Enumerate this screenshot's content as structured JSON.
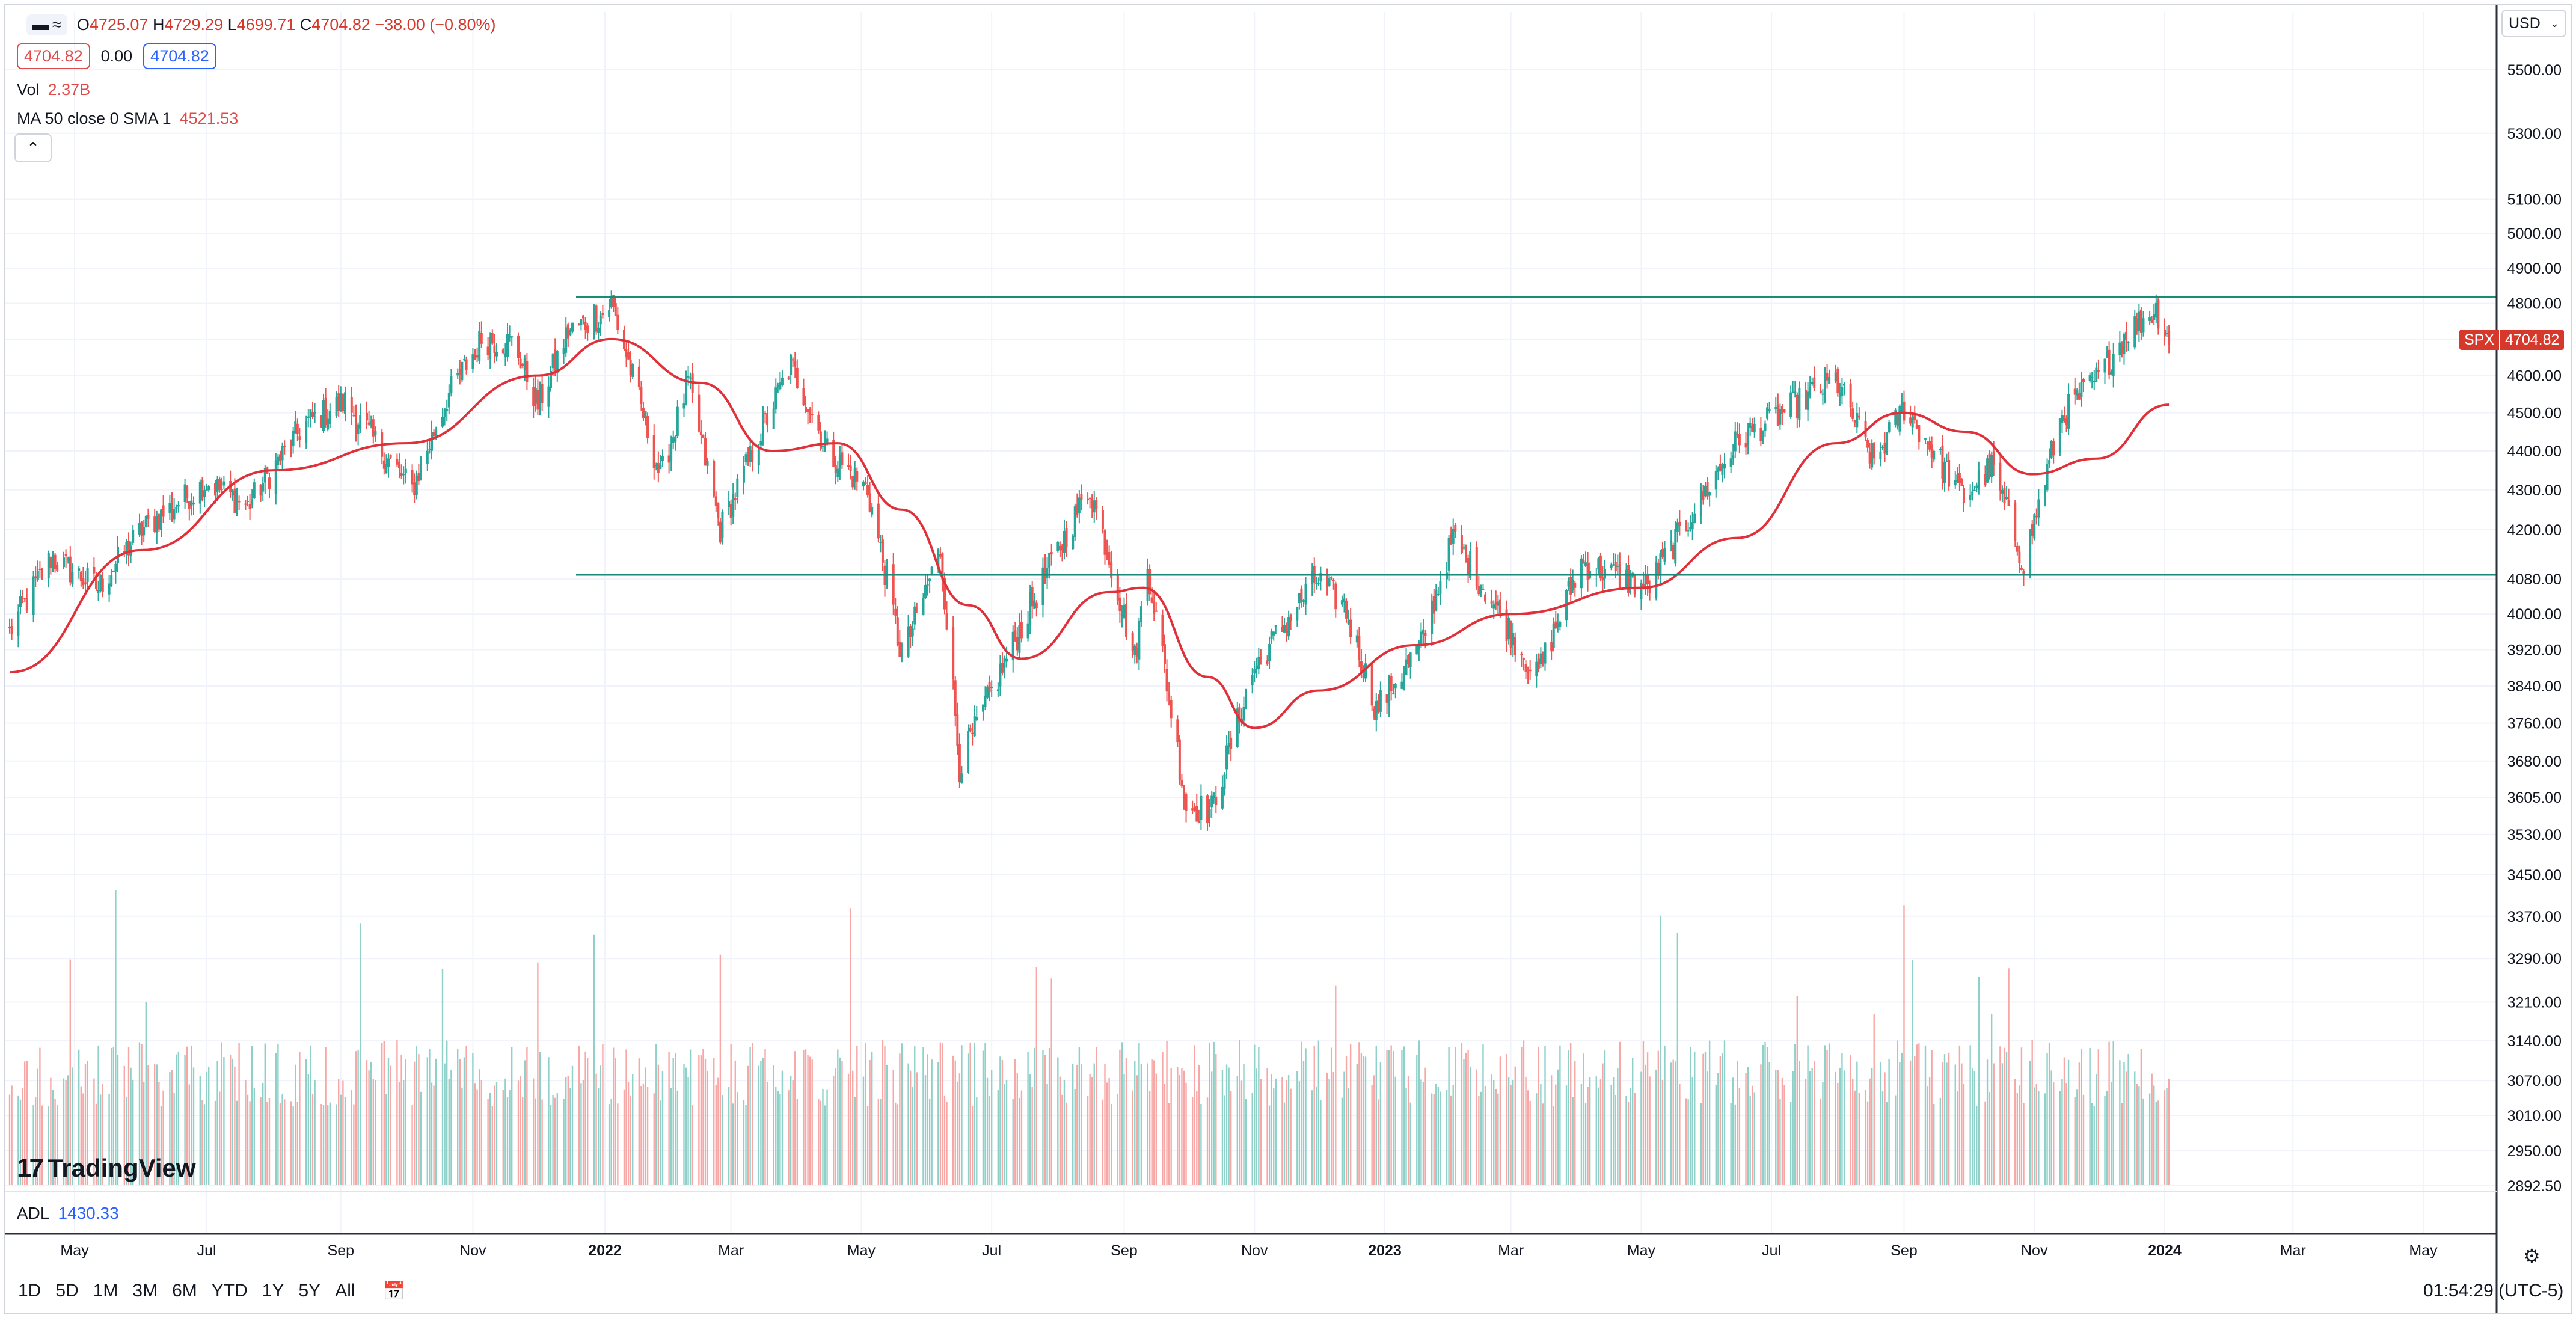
{
  "legend": {
    "ohlc": {
      "o_label": "O",
      "o": "4725.07",
      "h_label": "H",
      "h": "4729.29",
      "l_label": "L",
      "l": "4699.71",
      "c_label": "C",
      "c": "4704.82",
      "change": "−38.00 (−0.80%)"
    },
    "bid": "4704.82",
    "spread": "0.00",
    "ask": "4704.82",
    "vol_label": "Vol",
    "vol_value": "2.37B",
    "ma_label": "MA 50 close 0 SMA 1",
    "ma_value": "4521.53",
    "collapse_icon": "chevron-up-icon"
  },
  "currency": {
    "label": "USD",
    "icon": "chevron-down-icon"
  },
  "price_tag": {
    "symbol": "SPX",
    "price": "4704.82"
  },
  "logo": {
    "text": "TradingView"
  },
  "adl": {
    "label": "ADL",
    "value": "1430.33"
  },
  "toolbar": {
    "timeframes": [
      "1D",
      "5D",
      "1M",
      "3M",
      "6M",
      "YTD",
      "1Y",
      "5Y",
      "All"
    ],
    "goto_icon": "calendar-goto-icon"
  },
  "clock": "01:54:29 (UTC-5)",
  "colors": {
    "up": "#26a69a",
    "down": "#ef5350",
    "ma": "#e0303a",
    "hline": "#1a8a7a",
    "vol_up": "#8fd1c9",
    "vol_down": "#f7a8a6",
    "blue": "#2962ff"
  },
  "chart_data": {
    "type": "candlestick",
    "symbol": "SPX",
    "price_axis_ticks": [
      "5500.00",
      "5300.00",
      "5100.00",
      "5000.00",
      "4900.00",
      "4800.00",
      "4700.00",
      "4600.00",
      "4500.00",
      "4400.00",
      "4300.00",
      "4200.00",
      "4080.00",
      "4000.00",
      "3920.00",
      "3840.00",
      "3760.00",
      "3680.00",
      "3605.00",
      "3530.00",
      "3450.00",
      "3370.00",
      "3290.00",
      "3210.00",
      "3140.00",
      "3070.00",
      "3010.00",
      "2950.00",
      "2892.50"
    ],
    "price_scale": "log",
    "time_axis_labels": [
      "May",
      "Jul",
      "Sep",
      "Nov",
      "2022",
      "Mar",
      "May",
      "Jul",
      "Sep",
      "Nov",
      "2023",
      "Mar",
      "May",
      "Jul",
      "Sep",
      "Nov",
      "2024",
      "Mar",
      "May"
    ],
    "grid": true,
    "horizontal_lines": [
      4818,
      4090
    ],
    "price_keypoints": [
      [
        "2021-04-01",
        3960
      ],
      [
        "2021-04-20",
        4130
      ],
      [
        "2021-05-12",
        4060
      ],
      [
        "2021-06-01",
        4200
      ],
      [
        "2021-07-01",
        4320
      ],
      [
        "2021-07-20",
        4260
      ],
      [
        "2021-08-15",
        4470
      ],
      [
        "2021-09-03",
        4530
      ],
      [
        "2021-09-20",
        4400
      ],
      [
        "2021-10-04",
        4300
      ],
      [
        "2021-10-20",
        4540
      ],
      [
        "2021-11-05",
        4700
      ],
      [
        "2021-11-20",
        4690
      ],
      [
        "2021-12-01",
        4520
      ],
      [
        "2021-12-15",
        4720
      ],
      [
        "2021-12-31",
        4770
      ],
      [
        "2022-01-04",
        4800
      ],
      [
        "2022-01-27",
        4330
      ],
      [
        "2022-02-09",
        4580
      ],
      [
        "2022-02-24",
        4200
      ],
      [
        "2022-03-29",
        4630
      ],
      [
        "2022-04-15",
        4400
      ],
      [
        "2022-05-04",
        4300
      ],
      [
        "2022-05-20",
        3900
      ],
      [
        "2022-06-07",
        4150
      ],
      [
        "2022-06-16",
        3670
      ],
      [
        "2022-07-08",
        3900
      ],
      [
        "2022-08-16",
        4305
      ],
      [
        "2022-09-06",
        3900
      ],
      [
        "2022-09-12",
        4110
      ],
      [
        "2022-09-30",
        3585
      ],
      [
        "2022-10-12",
        3580
      ],
      [
        "2022-11-01",
        3880
      ],
      [
        "2022-11-30",
        4080
      ],
      [
        "2022-12-13",
        4020
      ],
      [
        "2022-12-28",
        3790
      ],
      [
        "2023-01-18",
        3930
      ],
      [
        "2023-02-02",
        4180
      ],
      [
        "2023-03-13",
        3860
      ],
      [
        "2023-04-03",
        4120
      ],
      [
        "2023-05-04",
        4060
      ],
      [
        "2023-06-15",
        4425
      ],
      [
        "2023-07-31",
        4590
      ],
      [
        "2023-08-18",
        4370
      ],
      [
        "2023-09-01",
        4515
      ],
      [
        "2023-09-29",
        4280
      ],
      [
        "2023-10-12",
        4360
      ],
      [
        "2023-10-27",
        4117
      ],
      [
        "2023-11-14",
        4495
      ],
      [
        "2023-12-01",
        4595
      ],
      [
        "2023-12-14",
        4720
      ],
      [
        "2023-12-28",
        4783
      ],
      [
        "2024-01-03",
        4705
      ]
    ],
    "ma50_keypoints": [
      [
        "2021-04-01",
        3870
      ],
      [
        "2021-06-01",
        4150
      ],
      [
        "2021-08-01",
        4350
      ],
      [
        "2021-10-01",
        4420
      ],
      [
        "2021-12-01",
        4600
      ],
      [
        "2022-01-04",
        4700
      ],
      [
        "2022-02-15",
        4580
      ],
      [
        "2022-03-20",
        4400
      ],
      [
        "2022-04-20",
        4420
      ],
      [
        "2022-05-20",
        4250
      ],
      [
        "2022-06-20",
        4020
      ],
      [
        "2022-07-15",
        3900
      ],
      [
        "2022-08-25",
        4050
      ],
      [
        "2022-09-10",
        4060
      ],
      [
        "2022-10-10",
        3860
      ],
      [
        "2022-11-01",
        3750
      ],
      [
        "2022-12-01",
        3830
      ],
      [
        "2023-01-15",
        3930
      ],
      [
        "2023-03-01",
        4000
      ],
      [
        "2023-05-01",
        4060
      ],
      [
        "2023-06-15",
        4180
      ],
      [
        "2023-07-31",
        4420
      ],
      [
        "2023-08-31",
        4500
      ],
      [
        "2023-09-30",
        4450
      ],
      [
        "2023-10-31",
        4340
      ],
      [
        "2023-11-30",
        4380
      ],
      [
        "2024-01-03",
        4521.53
      ]
    ],
    "volume": {
      "last": "2.37B",
      "bars_visible": true
    }
  }
}
